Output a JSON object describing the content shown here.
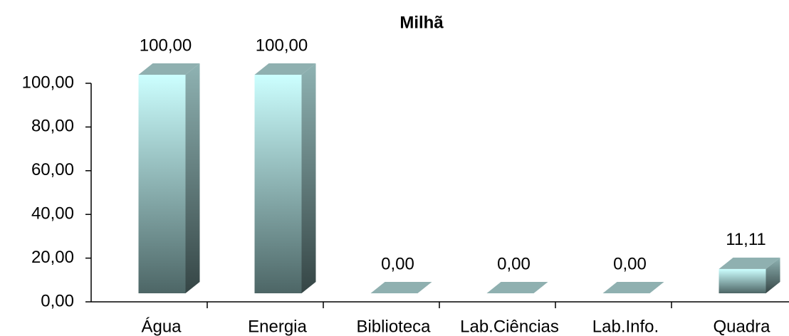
{
  "chart_data": {
    "type": "bar3d",
    "title": "Milhã",
    "categories": [
      "Água",
      "Energia",
      "Biblioteca",
      "Lab.Ciências",
      "Lab.Info.",
      "Quadra"
    ],
    "values": [
      100,
      100,
      0,
      0,
      0,
      11.11
    ],
    "value_labels": [
      "100,00",
      "100,00",
      "0,00",
      "0,00",
      "0,00",
      "11,11"
    ],
    "color": "#ccffff",
    "ylim": [
      0,
      100
    ],
    "yticks": [
      {
        "value": 0,
        "label": "0,00"
      },
      {
        "value": 20,
        "label": "20,00"
      },
      {
        "value": 40,
        "label": "40,00"
      },
      {
        "value": 60,
        "label": "60,00"
      },
      {
        "value": 80,
        "label": "80,00"
      },
      {
        "value": 100,
        "label": "100,00"
      }
    ],
    "grid": false
  }
}
